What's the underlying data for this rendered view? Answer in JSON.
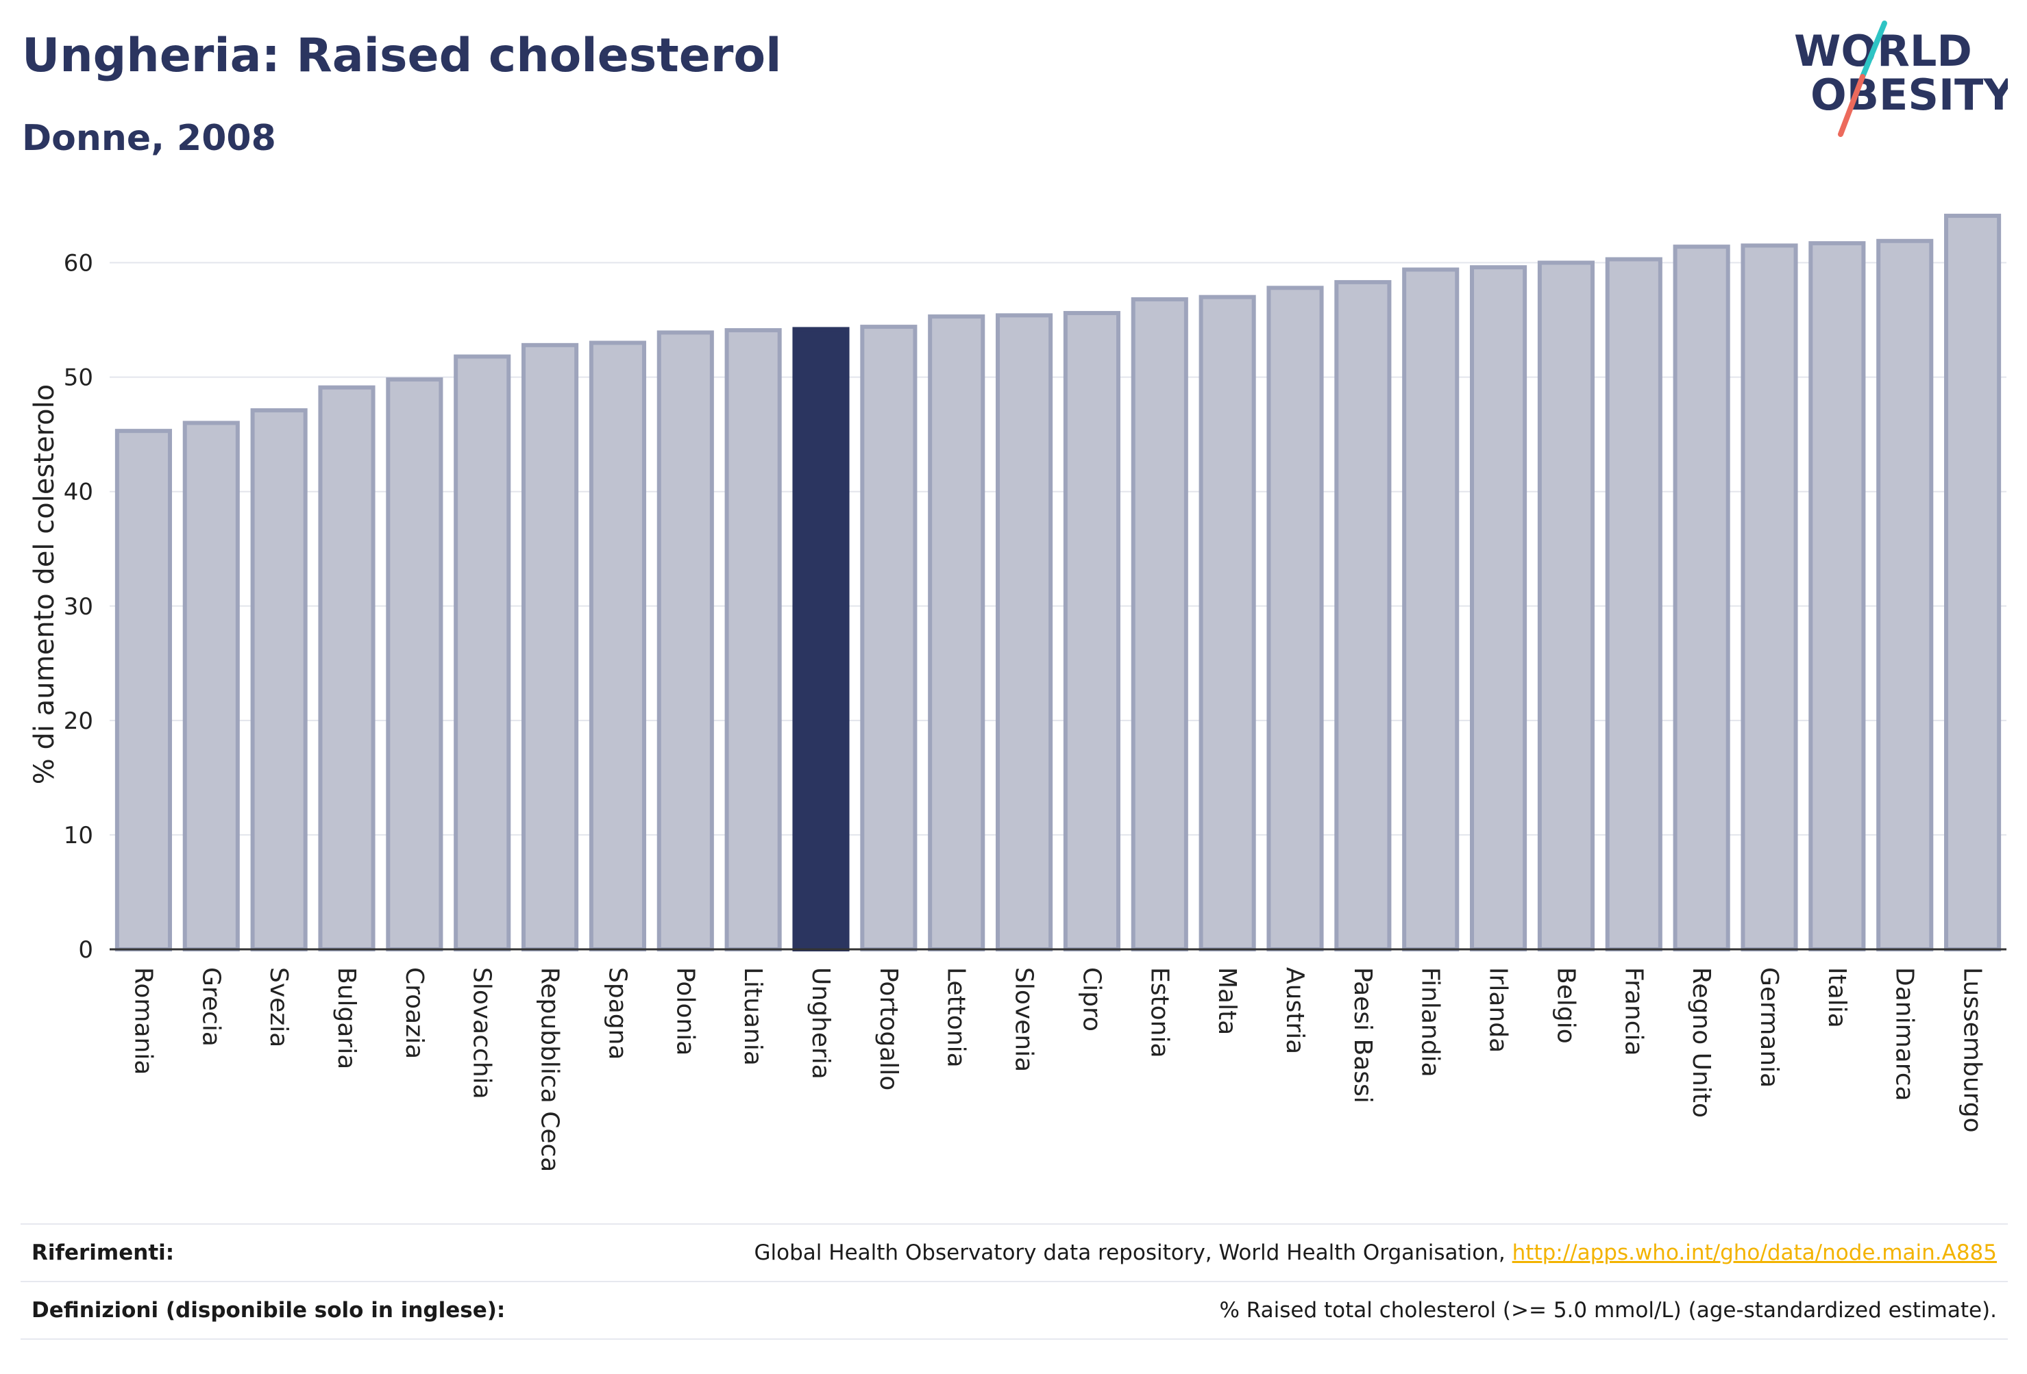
{
  "header": {
    "title": "Ungheria: Raised cholesterol",
    "subtitle": "Donne, 2008"
  },
  "logo": {
    "line1": "WORLD",
    "line2": "OBESITY",
    "stripe_colors": [
      "#2ec4c4",
      "#ec6a5c"
    ]
  },
  "colors": {
    "bar_fill": "#bfc2d0",
    "bar_stroke": "#9ea4bc",
    "highlight": "#2b3560",
    "title": "#2b3560",
    "link": "#f3b300"
  },
  "chart_data": {
    "type": "bar",
    "ylabel": "% di aumento del colesterolo",
    "xlabel": "",
    "ylim": [
      0,
      65
    ],
    "yticks": [
      0,
      10,
      20,
      30,
      40,
      50,
      60
    ],
    "grid": true,
    "highlight": "Ungheria",
    "categories": [
      "Romania",
      "Grecia",
      "Svezia",
      "Bulgaria",
      "Croazia",
      "Slovacchia",
      "Repubblica Ceca",
      "Spagna",
      "Polonia",
      "Lituania",
      "Ungheria",
      "Portogallo",
      "Lettonia",
      "Slovenia",
      "Cipro",
      "Estonia",
      "Malta",
      "Austria",
      "Paesi Bassi",
      "Finlandia",
      "Irlanda",
      "Belgio",
      "Francia",
      "Regno Unito",
      "Germania",
      "Italia",
      "Danimarca",
      "Lussemburgo"
    ],
    "values": [
      45.3,
      46.0,
      47.1,
      49.1,
      49.8,
      51.8,
      52.8,
      53.0,
      53.9,
      54.1,
      54.2,
      54.4,
      55.3,
      55.4,
      55.6,
      56.8,
      57.0,
      57.8,
      58.3,
      59.4,
      59.6,
      60.0,
      60.3,
      61.4,
      61.5,
      61.7,
      61.9,
      64.1
    ]
  },
  "references": {
    "sources_label": "Riferimenti:",
    "sources_text": "Global Health Observatory data repository, World Health Organisation,",
    "sources_link": "http://apps.who.int/gho/data/node.main.A885",
    "definitions_label": "Definizioni (disponibile solo in inglese):",
    "definitions_text": "% Raised total cholesterol (>= 5.0 mmol/L) (age-standardized estimate)."
  }
}
